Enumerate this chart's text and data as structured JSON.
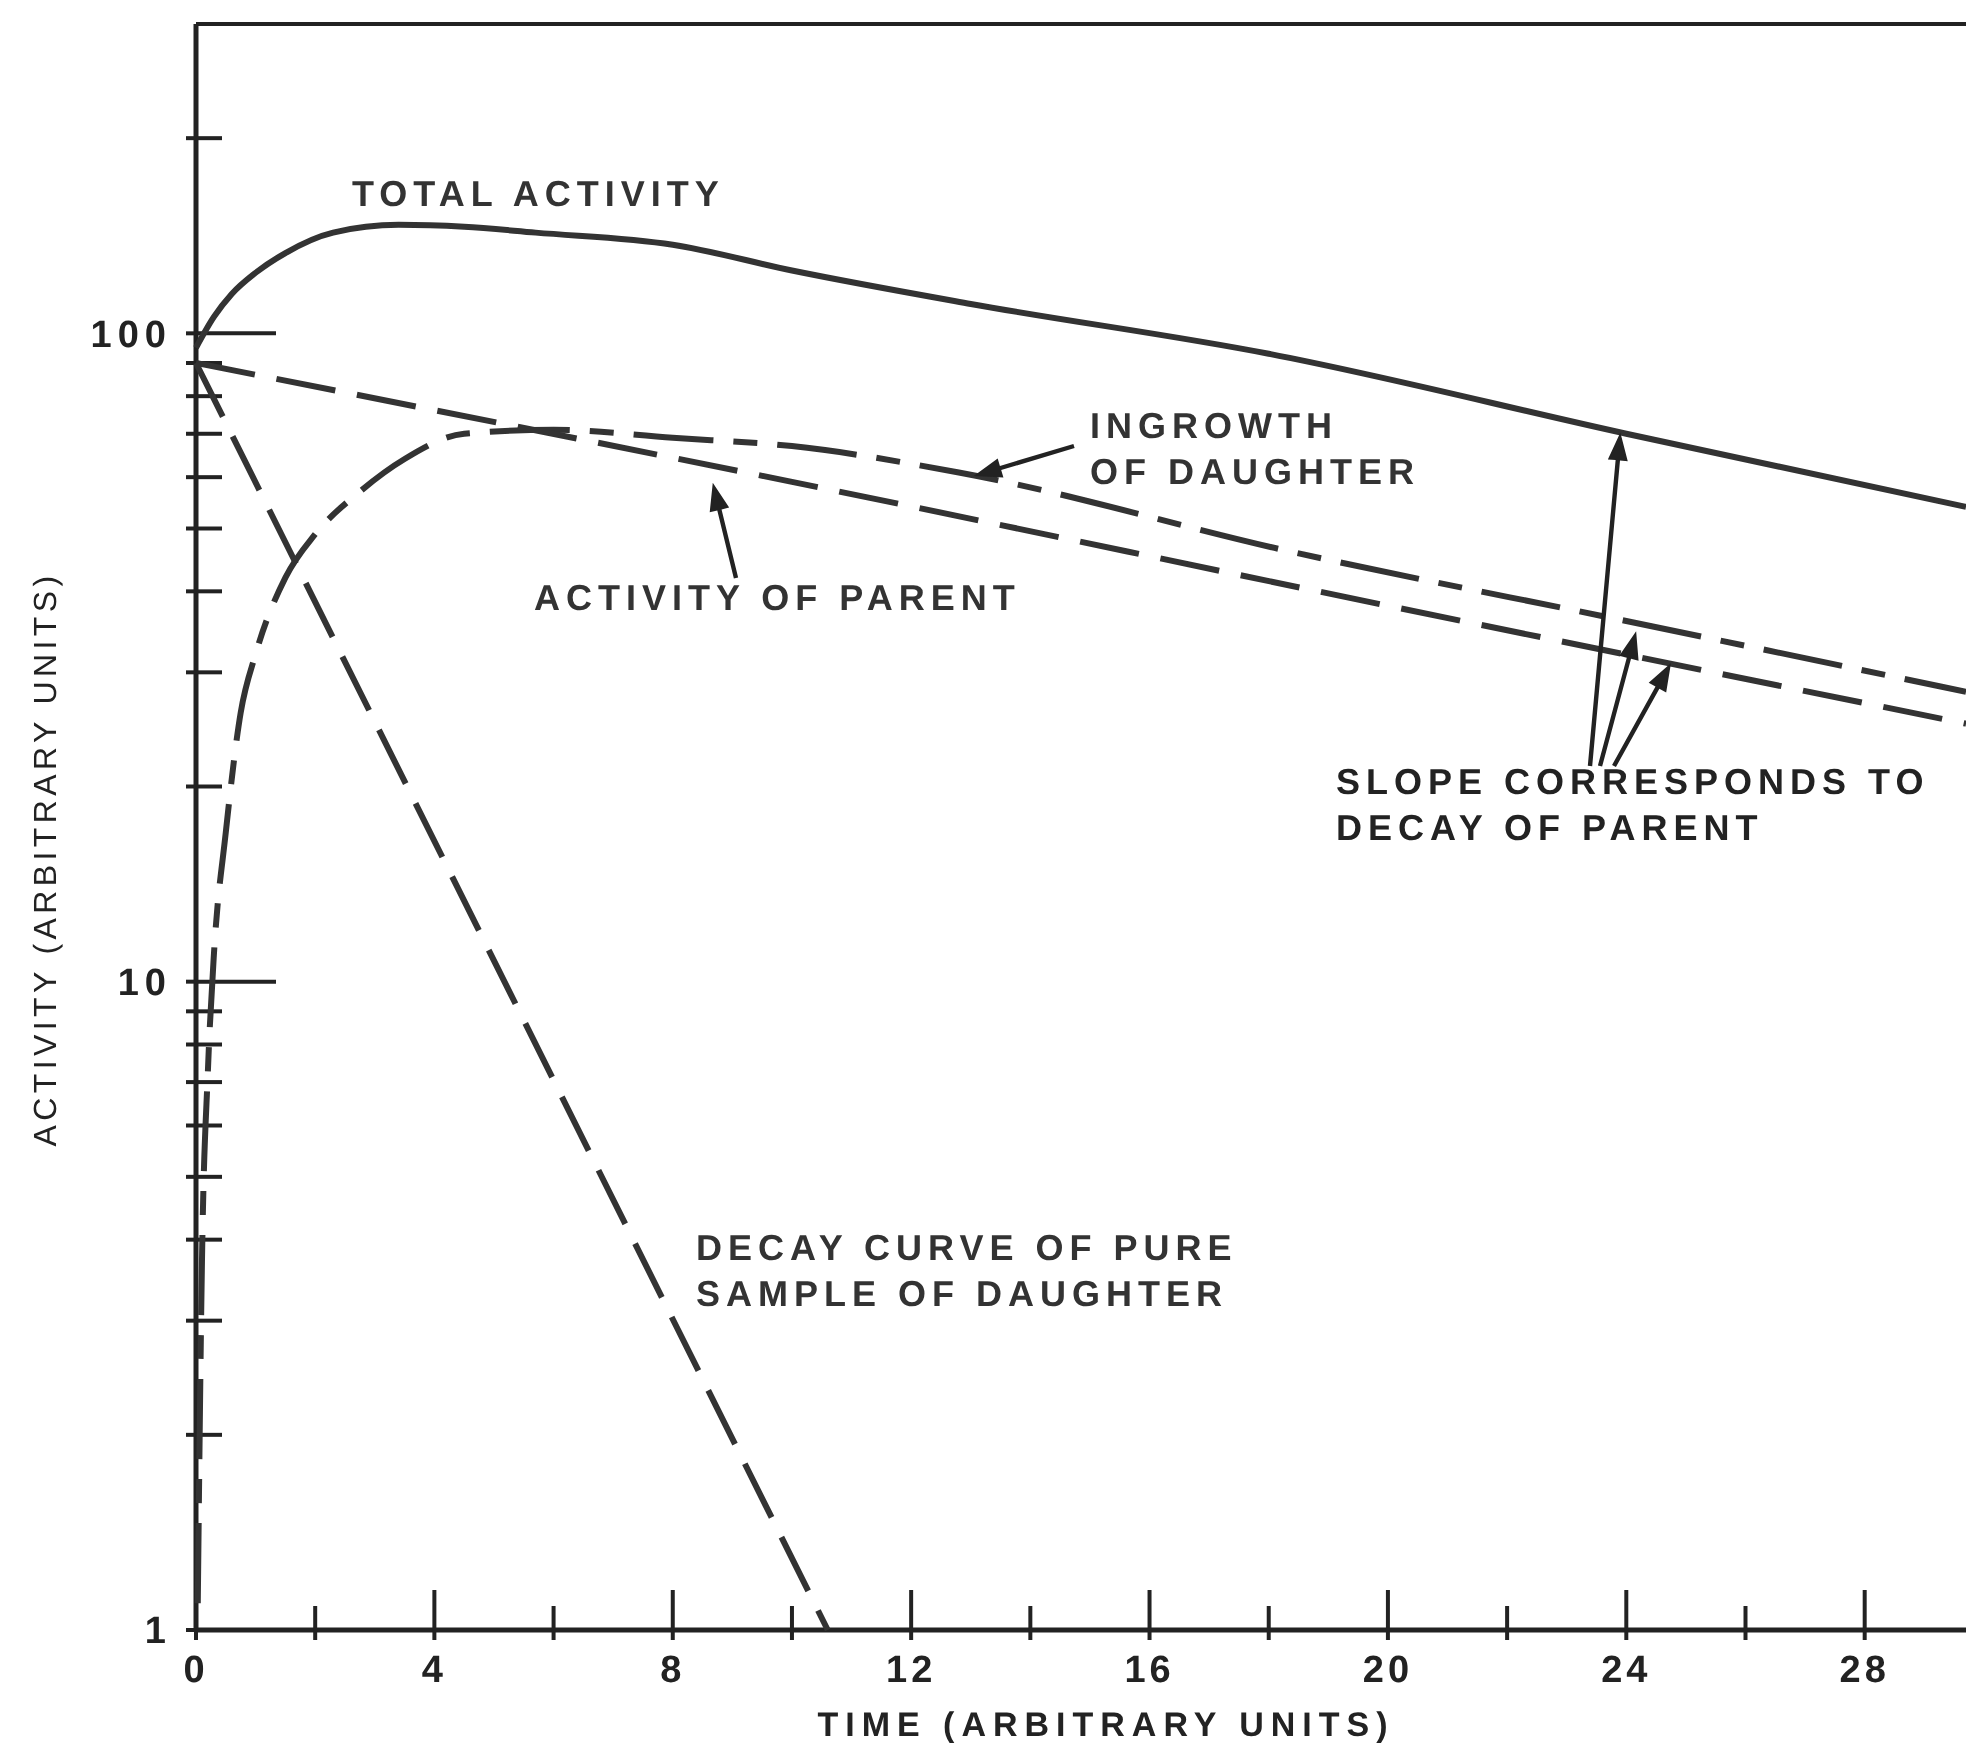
{
  "chart_data": {
    "type": "line",
    "xlabel": "TIME (ARBITRARY UNITS)",
    "ylabel": "ACTIVITY (ARBITRARY UNITS)",
    "log": "y",
    "xlim": [
      0,
      29.7
    ],
    "ylim": [
      1,
      300
    ],
    "xticks": [
      0,
      {
        "value": 2,
        "label": null
      },
      4,
      {
        "value": 6,
        "label": null
      },
      8,
      {
        "value": 10,
        "label": null
      },
      12,
      {
        "value": 14,
        "label": null
      },
      16,
      {
        "value": 18,
        "label": null
      },
      20,
      {
        "value": 22,
        "label": null
      },
      24,
      {
        "value": 26,
        "label": null
      },
      28
    ],
    "yticks": [
      1,
      {
        "value": 2,
        "label": null
      },
      {
        "value": 3,
        "label": null
      },
      {
        "value": 4,
        "label": null
      },
      {
        "value": 5,
        "label": null
      },
      {
        "value": 6,
        "label": null
      },
      {
        "value": 7,
        "label": null
      },
      {
        "value": 8,
        "label": null
      },
      {
        "value": 9,
        "label": null
      },
      10,
      {
        "value": 20,
        "label": null
      },
      {
        "value": 30,
        "label": null
      },
      {
        "value": 40,
        "label": null
      },
      {
        "value": 50,
        "label": null
      },
      {
        "value": 60,
        "label": null
      },
      {
        "value": 70,
        "label": null
      },
      {
        "value": 80,
        "label": null
      },
      {
        "value": 90,
        "label": null
      },
      100,
      {
        "value": 200,
        "label": null
      }
    ],
    "series": [
      {
        "name": "TOTAL ACTIVITY",
        "color": "#333333",
        "line_style": "solid",
        "x": [
          0,
          0.3,
          0.6,
          1,
          1.5,
          2.3,
          3.4,
          4.5,
          5.7,
          8,
          10,
          13,
          18,
          24,
          29.7
        ],
        "values": [
          95,
          106,
          115,
          124,
          133,
          143,
          147,
          146,
          143,
          137,
          125,
          111,
          93,
          70,
          54
        ]
      },
      {
        "name": "INGROWTH\nOF DAUGHTER",
        "color": "#333333",
        "line_style": "dashdot",
        "x": [
          0.03,
          0.1,
          0.2,
          0.3,
          0.5,
          0.75,
          1,
          1.5,
          2,
          2.75,
          3.5,
          4.5,
          6,
          8,
          10,
          12.8,
          18.4,
          24,
          29.7
        ],
        "values": [
          1.1,
          3.7,
          7.3,
          11,
          17,
          26,
          32,
          42,
          49,
          57,
          64,
          70,
          71,
          69,
          67,
          61,
          46,
          36,
          28
        ]
      },
      {
        "name": "ACTIVITY OF PARENT",
        "color": "#333333",
        "line_style": "dashed",
        "x": [
          0,
          10,
          20,
          29.7
        ],
        "values": [
          90,
          59,
          38,
          25
        ]
      },
      {
        "name": "DECAY CURVE OF PURE\nSAMPLE OF DAUGHTER",
        "color": "#333333",
        "line_style": "dashed",
        "x": [
          0,
          10.6
        ],
        "values": [
          90,
          1
        ]
      }
    ],
    "annotations": [
      {
        "text": "SLOPE CORRESPONDS TO\nDECAY OF PARENT",
        "x": 24.75,
        "y": 31
      }
    ]
  }
}
